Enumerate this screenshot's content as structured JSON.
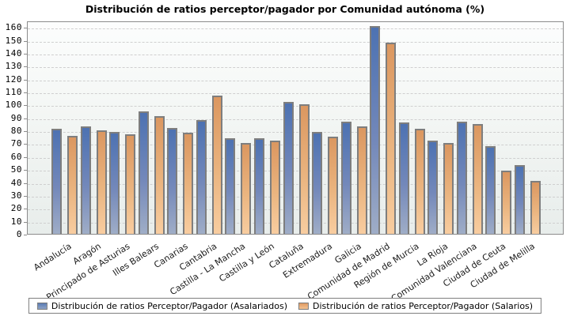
{
  "chart_data": {
    "type": "bar",
    "title": "Distribución de ratios perceptor/pagador por Comunidad autónoma (%)",
    "xlabel": "",
    "ylabel": "",
    "categories": [
      "Andalucía",
      "Aragón",
      "Principado de Asturias",
      "Illes Balears",
      "Canarias",
      "Cantabria",
      "Castilla - La Mancha",
      "Castilla y León",
      "Cataluña",
      "Extremadura",
      "Galicia",
      "Comunidad de Madrid",
      "Región de Murcia",
      "La Rioja",
      "Comunidad Valenciana",
      "Ciudad de Ceuta",
      "Ciudad de Melilla"
    ],
    "series": [
      {
        "name": "Distribución de ratios Perceptor/Pagador (Asalariados)",
        "color": "#4d72b2",
        "values": [
          81,
          83,
          79,
          95,
          82,
          88,
          74,
          74,
          102,
          79,
          87,
          161,
          86,
          72,
          87,
          68,
          53
        ]
      },
      {
        "name": "Distribución de ratios Perceptor/Pagador (Salarios)",
        "color": "#db9760",
        "values": [
          76,
          80,
          77,
          91,
          78,
          107,
          70,
          72,
          100,
          75,
          83,
          148,
          81,
          70,
          85,
          49,
          41
        ]
      }
    ],
    "ylim": [
      0,
      165
    ],
    "yticks": [
      0,
      10,
      20,
      30,
      40,
      50,
      60,
      70,
      80,
      90,
      100,
      110,
      120,
      130,
      140,
      150,
      160
    ],
    "grid": "horizontal-dashed",
    "legend_position": "bottom",
    "colors": {
      "bar_outline": "#7e7e7e",
      "gridline": "#cfcfcf",
      "plot_border": "#8c8c8c",
      "plot_bg_top": "#fcfdfd",
      "plot_bg_bottom": "#e8edeb"
    }
  }
}
